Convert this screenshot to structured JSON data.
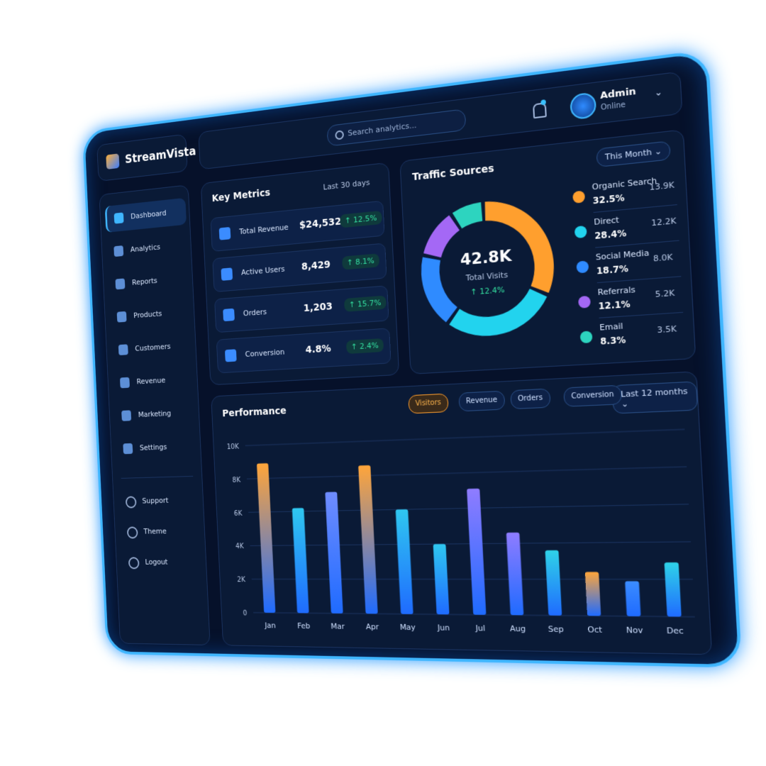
{
  "app": {
    "name": "StreamVista",
    "search_placeholder": "Search analytics...",
    "user": {
      "name": "Admin",
      "status": "Online"
    }
  },
  "nav": {
    "main": [
      "Dashboard",
      "Analytics",
      "Reports",
      "Products",
      "Customers",
      "Revenue",
      "Marketing",
      "Settings"
    ],
    "bottom": [
      "Support",
      "Theme",
      "Logout"
    ]
  },
  "key_metrics": {
    "title": "Key Metrics",
    "period": "Last 30 days",
    "rows": [
      {
        "label": "Total Revenue",
        "value": "$24,532",
        "change": "↑ 12.5%"
      },
      {
        "label": "Active Users",
        "value": "8,429",
        "change": "↑ 8.1%"
      },
      {
        "label": "Orders",
        "value": "1,203",
        "change": "↑ 15.7%"
      },
      {
        "label": "Conversion",
        "value": "4.8%",
        "change": "↑ 2.4%"
      }
    ]
  },
  "traffic_sources": {
    "period": "This Month"
  },
  "performance": {
    "title": "Performance",
    "filters": [
      "Visitors",
      "Revenue",
      "Orders",
      "Conversion"
    ],
    "period": "Last 12 months"
  },
  "chart_data": [
    {
      "type": "donut",
      "title": "Traffic Sources",
      "center_value": "42.8K",
      "center_label": "Total Visits",
      "center_change": "↑ 12.4%",
      "categories": [
        "Organic Search",
        "Direct",
        "Social Media",
        "Referrals",
        "Email"
      ],
      "values": [
        32.5,
        28.4,
        18.7,
        12.1,
        8.3
      ],
      "value_labels": [
        "32.5%",
        "28.4%",
        "18.7%",
        "12.1%",
        "8.3%"
      ],
      "visits": [
        "13.9K",
        "12.2K",
        "8.0K",
        "5.2K",
        "3.5K"
      ],
      "colors": [
        "#ff9f2e",
        "#22d3ee",
        "#2f8bff",
        "#a468f5",
        "#2dd4bf"
      ]
    },
    {
      "type": "bar",
      "categories": [
        "Jan",
        "Feb",
        "Mar",
        "Apr",
        "May",
        "Jun",
        "Jul",
        "Aug",
        "Sep",
        "Oct",
        "Nov",
        "Dec"
      ],
      "values": [
        8900,
        6200,
        7100,
        8600,
        6000,
        4000,
        7100,
        4600,
        3600,
        2400,
        1900,
        2900
      ],
      "colors": [
        "#ffa53a",
        "#2fc7f0",
        "#6f8cff",
        "#ffa53a",
        "#2fc7f0",
        "#2fc7f0",
        "#8f7cff",
        "#8f7cff",
        "#2fd3e8",
        "#ffa53a",
        "#3b8cff",
        "#2fd3e8"
      ],
      "ylim": [
        0,
        10000
      ],
      "yticks": [
        0,
        {
          "value": 2000,
          "label": "2K"
        },
        {
          "value": 4000,
          "label": "4K"
        },
        {
          "value": 6000,
          "label": "6K"
        },
        {
          "value": 8000,
          "label": "8K"
        },
        {
          "value": 10000,
          "label": "10K"
        }
      ],
      "grid": true
    }
  ]
}
